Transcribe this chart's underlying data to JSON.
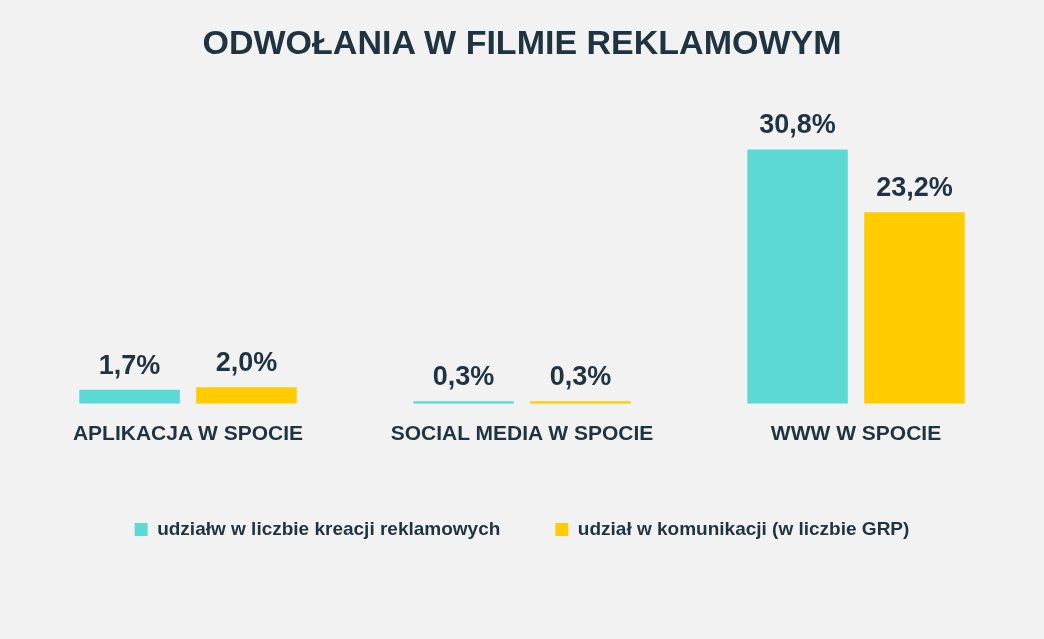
{
  "chart_data": {
    "type": "bar",
    "title": "ODWOŁANIA W FILMIE REKLAMOWYM",
    "categories": [
      "APLIKACJA W SPOCIE",
      "SOCIAL MEDIA W SPOCIE",
      "WWW W SPOCIE"
    ],
    "series": [
      {
        "name": "udziałw w liczbie kreacji reklamowych",
        "color": "#5dd9d5",
        "values": [
          1.7,
          0.3,
          30.8
        ],
        "value_labels": [
          "1,7%",
          "0,3%",
          "30,8%"
        ]
      },
      {
        "name": "udział w komunikacji (w liczbie GRP)",
        "color": "#ffcc00",
        "values": [
          2.0,
          0.3,
          23.2
        ],
        "value_labels": [
          "2,0%",
          "0,3%",
          "23,2%"
        ]
      }
    ],
    "grid": false,
    "legend": "bottom"
  }
}
